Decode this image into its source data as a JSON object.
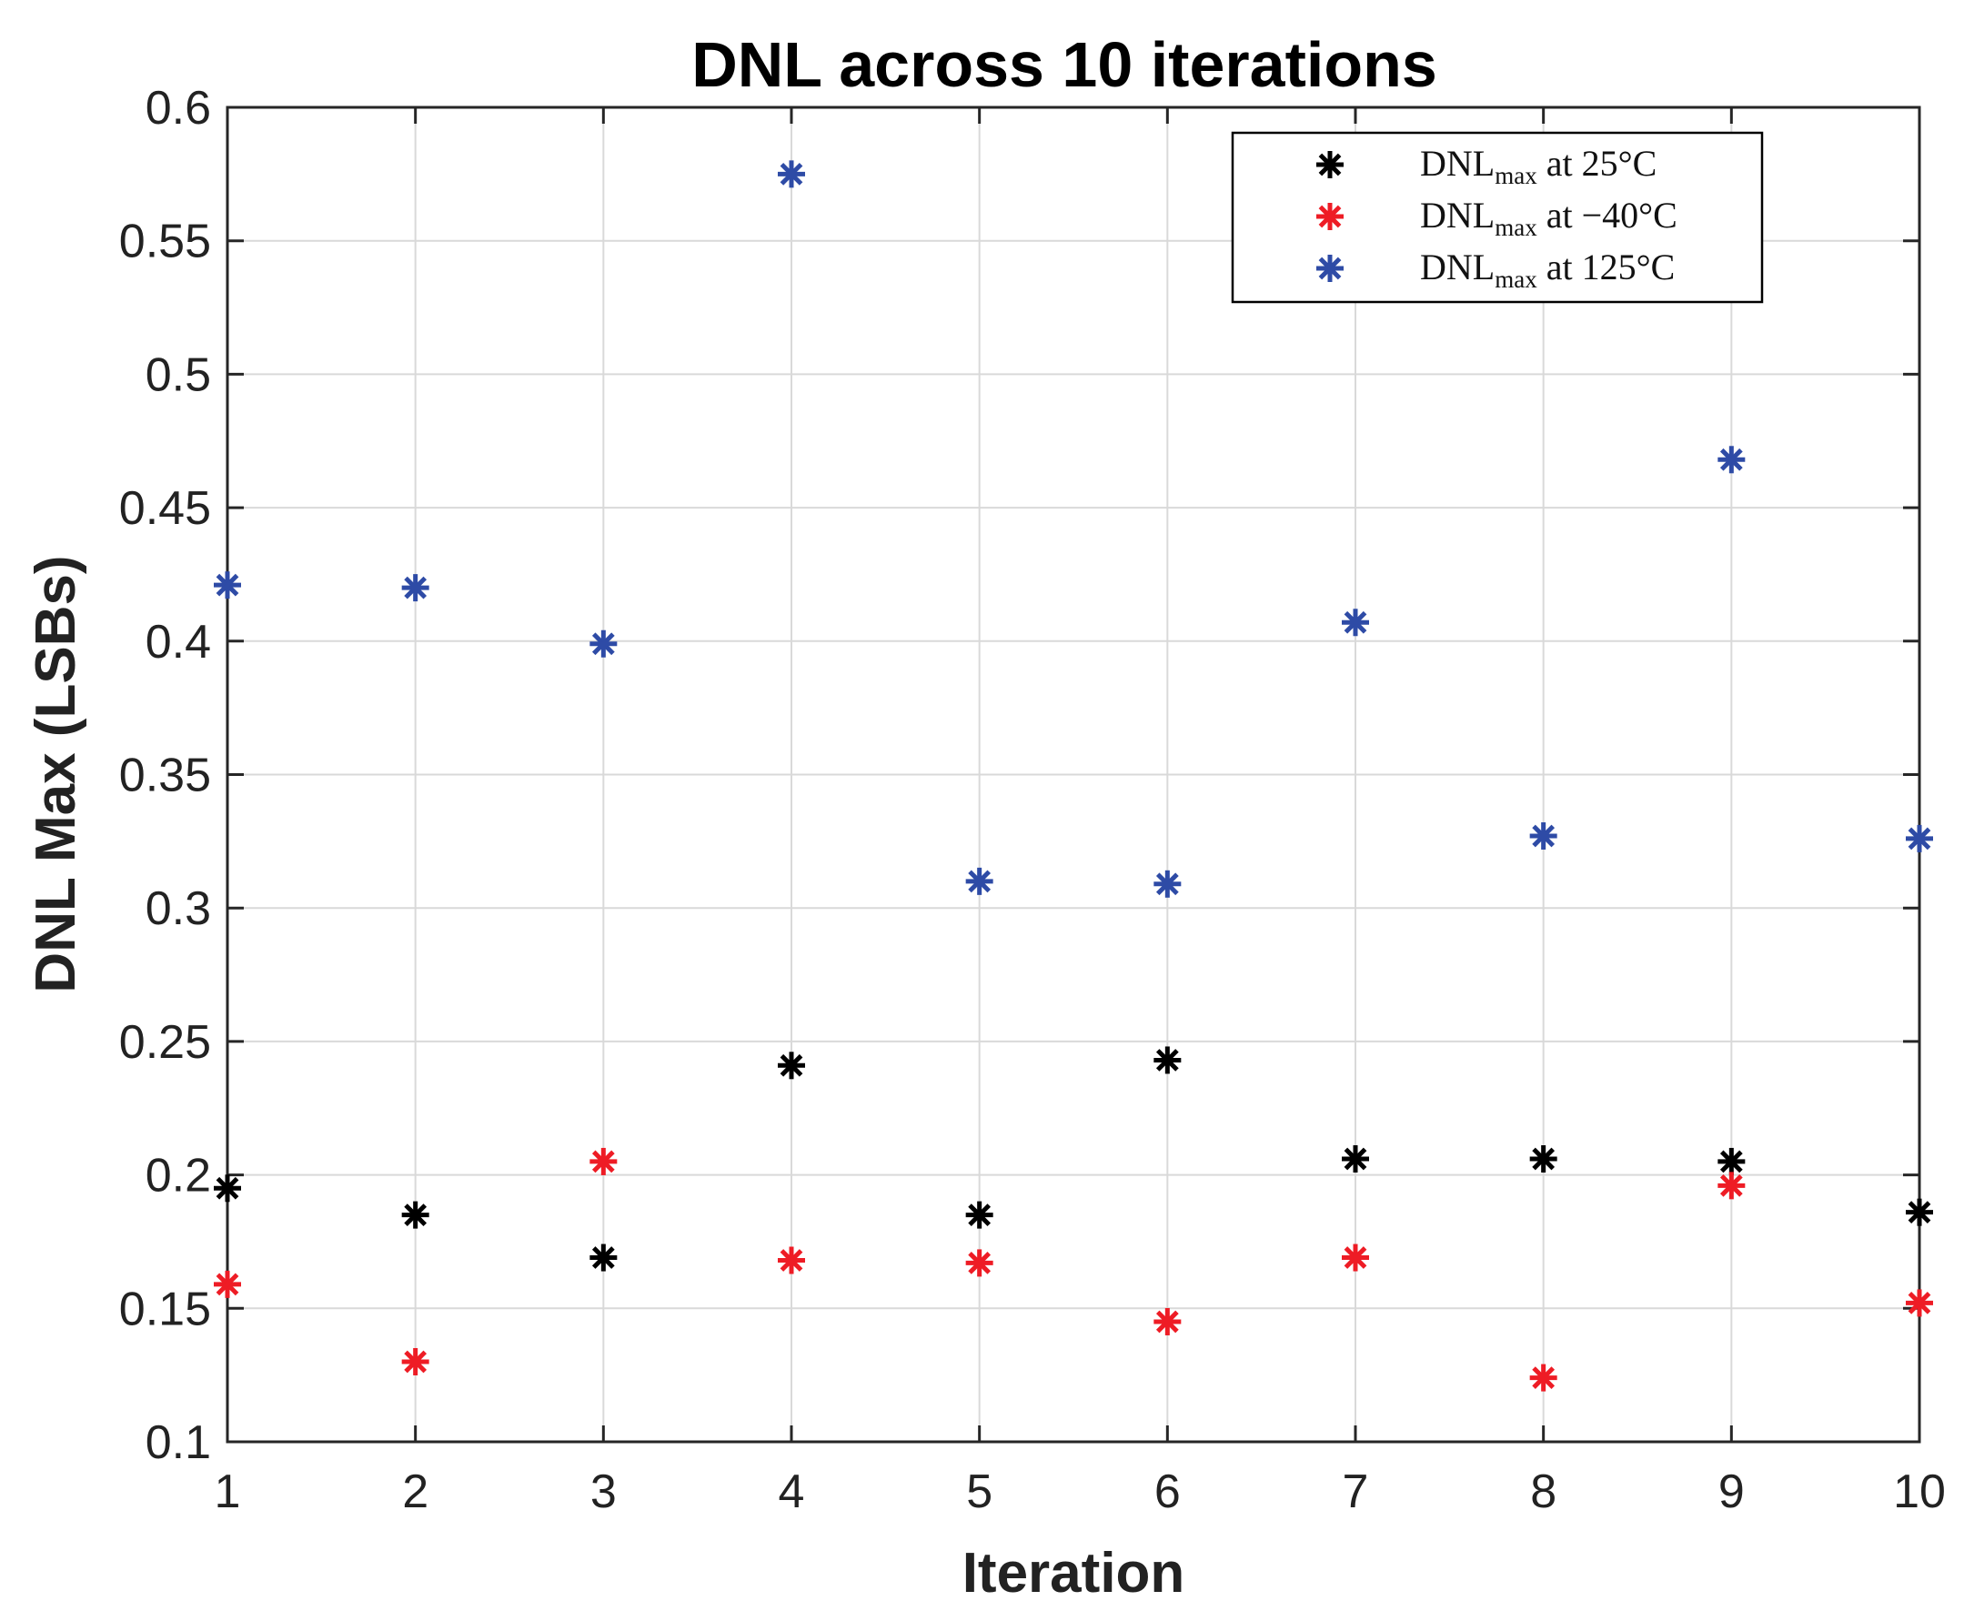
{
  "chart_data": {
    "type": "scatter",
    "title": "DNL across 10 iterations",
    "xlabel": "Iteration",
    "ylabel": "DNL Max (LSBs)",
    "xlim": [
      1,
      10
    ],
    "ylim": [
      0.1,
      0.6
    ],
    "xticks": [
      1,
      2,
      3,
      4,
      5,
      6,
      7,
      8,
      9,
      10
    ],
    "yticks": [
      0.1,
      0.15,
      0.2,
      0.25,
      0.3,
      0.35,
      0.4,
      0.45,
      0.5,
      0.55,
      0.6
    ],
    "ytick_labels": [
      "0.1",
      "0.15",
      "0.2",
      "0.25",
      "0.3",
      "0.35",
      "0.4",
      "0.45",
      "0.5",
      "0.55",
      "0.6"
    ],
    "grid": true,
    "marker": "asterisk",
    "legend_position": "top-right",
    "x": [
      1,
      2,
      3,
      4,
      5,
      6,
      7,
      8,
      9,
      10
    ],
    "series": [
      {
        "name": "DNLmax at 25°C",
        "legend_main": "DNL",
        "legend_sub": "max",
        "legend_rest": " at 25°C",
        "color": "#000000",
        "values": [
          0.195,
          0.185,
          0.169,
          0.241,
          0.185,
          0.243,
          0.206,
          0.206,
          0.205,
          0.186
        ]
      },
      {
        "name": "DNLmax at −40°C",
        "legend_main": "DNL",
        "legend_sub": "max",
        "legend_rest": " at −40°C",
        "color": "#ee1c25",
        "values": [
          0.159,
          0.13,
          0.205,
          0.168,
          0.167,
          0.145,
          0.169,
          0.124,
          0.196,
          0.152
        ]
      },
      {
        "name": "DNLmax at 125°C",
        "legend_main": "DNL",
        "legend_sub": "max",
        "legend_rest": " at 125°C",
        "color": "#2e4ba6",
        "values": [
          0.421,
          0.42,
          0.399,
          0.575,
          0.31,
          0.309,
          0.407,
          0.327,
          0.468,
          0.326
        ]
      }
    ]
  }
}
